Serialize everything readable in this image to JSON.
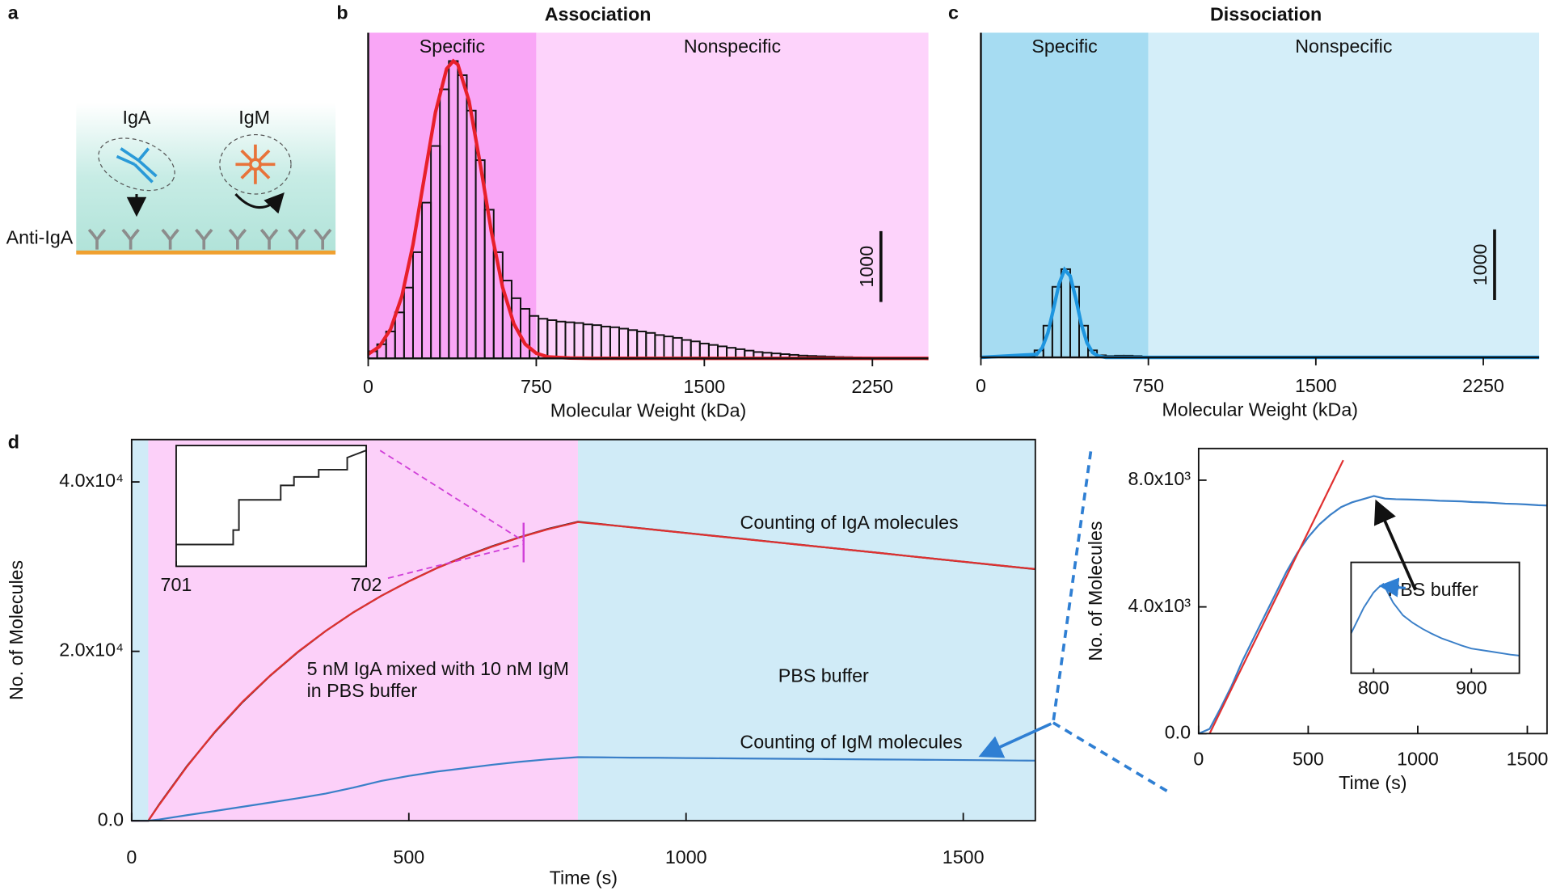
{
  "panel_labels": [
    "a",
    "b",
    "c",
    "d"
  ],
  "diagram": {
    "labels": [
      "IgA",
      "IgM",
      "Anti-IgA"
    ]
  },
  "chart_data": [
    {
      "type": "histogram",
      "title": "Association",
      "xlabel": "Molecular Weight (kDa)",
      "xlim": [
        0,
        2500
      ],
      "ylim": [
        0,
        4600
      ],
      "xticks": [
        0,
        750,
        1500,
        2250
      ],
      "scalebar": 1000,
      "color": "#111111",
      "regions": [
        {
          "label": "Specific",
          "range": [
            0,
            750
          ],
          "color": "#f9a6f6"
        },
        {
          "label": "Nonspecific",
          "range": [
            750,
            2500
          ],
          "color": "#fdd3fb"
        }
      ],
      "bins": [
        0,
        40,
        80,
        120,
        160,
        200,
        240,
        280,
        320,
        360,
        400,
        440,
        480,
        520,
        560,
        600,
        640,
        680,
        720,
        760,
        800,
        840,
        880,
        920,
        960,
        1000,
        1040,
        1080,
        1120,
        1160,
        1200,
        1240,
        1280,
        1320,
        1360,
        1400,
        1440,
        1480,
        1520,
        1560,
        1600,
        1640,
        1680,
        1720,
        1760,
        1800,
        1840,
        1880,
        1920,
        1960,
        2000,
        2040,
        2080,
        2120,
        2160,
        2200,
        2240,
        2280,
        2320,
        2360,
        2400,
        2440,
        2480
      ],
      "values": [
        100,
        200,
        380,
        650,
        1000,
        1500,
        2200,
        3000,
        3800,
        4200,
        4000,
        3500,
        2800,
        2100,
        1500,
        1100,
        850,
        700,
        600,
        560,
        540,
        520,
        510,
        500,
        480,
        470,
        450,
        440,
        420,
        400,
        380,
        360,
        330,
        310,
        290,
        260,
        240,
        210,
        190,
        170,
        150,
        130,
        110,
        90,
        80,
        70,
        60,
        50,
        40,
        35,
        30,
        25,
        20,
        18,
        15,
        12,
        10,
        10,
        8,
        8,
        6,
        5
      ],
      "fit": {
        "color": "#e8202a",
        "x": [
          0,
          50,
          100,
          150,
          200,
          250,
          300,
          350,
          380,
          400,
          450,
          500,
          550,
          600,
          650,
          700,
          750,
          800,
          900,
          1000,
          2500
        ],
        "values": [
          59,
          168,
          413,
          878,
          1610,
          2547,
          3475,
          4090,
          4200,
          4150,
          3633,
          2743,
          1786,
          1003,
          486,
          203,
          73,
          23,
          5,
          1,
          0
        ]
      }
    },
    {
      "type": "histogram",
      "title": "Dissociation",
      "xlabel": "Molecular Weight (kDa)",
      "xlim": [
        0,
        2500
      ],
      "ylim": [
        0,
        4600
      ],
      "xticks": [
        0,
        750,
        1500,
        2250
      ],
      "scalebar": 1000,
      "color": "#111111",
      "regions": [
        {
          "label": "Specific",
          "range": [
            0,
            750
          ],
          "color": "#a6dcf2"
        },
        {
          "label": "Nonspecific",
          "range": [
            750,
            2500
          ],
          "color": "#d4eef9"
        }
      ],
      "bins": [
        0,
        40,
        80,
        120,
        160,
        200,
        240,
        280,
        320,
        360,
        400,
        440,
        480,
        520,
        560,
        600,
        640,
        680,
        720,
        760,
        800,
        840,
        880,
        920,
        960,
        1000,
        1040,
        1080,
        1120,
        1160,
        1200,
        1240,
        1280,
        1320,
        1360,
        1400,
        1440,
        1480,
        1520,
        1560,
        1600,
        1640,
        1680,
        1720,
        1760,
        1800,
        1840,
        1880,
        1920,
        1960,
        2000,
        2040,
        2080,
        2120,
        2160,
        2200,
        2240,
        2280,
        2320,
        2360,
        2400,
        2440,
        2480
      ],
      "values": [
        0,
        0,
        0,
        0,
        0,
        20,
        100,
        450,
        1000,
        1250,
        1000,
        450,
        100,
        30,
        20,
        25,
        25,
        20,
        10,
        5,
        5,
        5,
        4,
        4,
        4,
        3,
        3,
        3,
        3,
        2,
        2,
        2,
        2,
        2,
        2,
        2,
        2,
        2,
        2,
        2,
        2,
        2,
        2,
        2,
        2,
        2,
        2,
        2,
        2,
        2,
        2,
        2,
        2,
        2,
        2,
        2,
        2,
        2,
        2,
        2,
        2,
        2
      ],
      "fit": {
        "color": "#1e96e0",
        "x": [
          0,
          250,
          275,
          300,
          325,
          350,
          375,
          400,
          425,
          450,
          475,
          500,
          525,
          560,
          2500
        ],
        "values": [
          0,
          43,
          138,
          348,
          683,
          1044,
          1244,
          1154,
          834,
          469,
          206,
          70,
          19,
          0,
          0
        ]
      }
    },
    {
      "type": "line",
      "xlabel": "Time (s)",
      "ylabel": "No. of Molecules",
      "xlim": [
        0,
        1630
      ],
      "ylim": [
        0,
        45000
      ],
      "xticks": [
        0,
        500,
        1000,
        1500
      ],
      "yticks": [
        {
          "value": 0,
          "label": "0.0"
        },
        {
          "value": 20000,
          "label": "2.0x10⁴"
        },
        {
          "value": 40000,
          "label": "4.0x10⁴"
        }
      ],
      "regions": [
        {
          "range": [
            0,
            30
          ],
          "color": "#d0ebf7"
        },
        {
          "range": [
            30,
            805
          ],
          "color": "#fcd0f9"
        },
        {
          "range": [
            805,
            1630
          ],
          "color": "#d0ebf7"
        }
      ],
      "annotations": [
        "5 nM IgA mixed with 10 nM IgM",
        "in PBS buffer",
        "PBS buffer",
        "Counting of IgA molecules",
        "Counting of IgM molecules"
      ],
      "x": [
        0,
        30,
        50,
        100,
        150,
        200,
        250,
        300,
        350,
        400,
        450,
        500,
        550,
        600,
        650,
        700,
        750,
        805,
        850,
        900,
        950,
        1000,
        1050,
        1100,
        1150,
        1200,
        1250,
        1300,
        1350,
        1400,
        1450,
        1500,
        1550,
        1600,
        1630
      ],
      "series": [
        {
          "color": "#222222",
          "values": [
            0,
            0,
            1950,
            6460,
            10440,
            13990,
            17120,
            19920,
            22390,
            24600,
            26550,
            28270,
            29820,
            31190,
            32400,
            33480,
            34440,
            35300,
            35000,
            34650,
            34320,
            33980,
            33640,
            33300,
            32960,
            32620,
            32280,
            31940,
            31600,
            31260,
            30920,
            30580,
            30240,
            29900,
            29700
          ]
        },
        {
          "color": "#e03030",
          "values": [
            0,
            0,
            1900,
            6400,
            10500,
            14050,
            17150,
            19950,
            22400,
            24600,
            26550,
            28250,
            29800,
            31150,
            32350,
            33450,
            34400,
            35250,
            34980,
            34640,
            34300,
            33970,
            33630,
            33290,
            32950,
            32610,
            32280,
            31940,
            31600,
            31260,
            30920,
            30590,
            30250,
            29910,
            29720
          ]
        },
        {
          "color": "#3a7fc8",
          "values": [
            0,
            0,
            150,
            650,
            1150,
            1650,
            2150,
            2650,
            3200,
            3900,
            4700,
            5300,
            5800,
            6200,
            6600,
            6950,
            7250,
            7500,
            7480,
            7450,
            7430,
            7400,
            7380,
            7350,
            7330,
            7300,
            7280,
            7260,
            7230,
            7210,
            7190,
            7160,
            7140,
            7110,
            7100
          ]
        }
      ]
    },
    {
      "type": "line",
      "xlim": [
        701,
        702
      ],
      "ylim": [
        32800,
        32900
      ],
      "xticks": [
        701,
        702
      ],
      "x": [
        701,
        701.3,
        701.3,
        701.33,
        701.33,
        701.55,
        701.55,
        701.62,
        701.62,
        701.75,
        701.75,
        701.9,
        701.9,
        702
      ],
      "series": [
        {
          "color": "#222222",
          "values": [
            32818,
            32818,
            32830,
            32830,
            32855,
            32855,
            32867,
            32867,
            32874,
            32874,
            32880,
            32880,
            32890,
            32896
          ]
        }
      ]
    },
    {
      "type": "line",
      "xlabel": "Time (s)",
      "ylabel": "No. of Molecules",
      "xlim": [
        0,
        1590
      ],
      "ylim": [
        0,
        9000
      ],
      "xticks": [
        0,
        500,
        1000,
        1500
      ],
      "yticks": [
        {
          "value": 0,
          "label": "0.0"
        },
        {
          "value": 4000,
          "label": "4.0x10³"
        },
        {
          "value": 8000,
          "label": "8.0x10³"
        }
      ],
      "series": [
        {
          "color": "#3a7fc8",
          "x": [
            0,
            50,
            100,
            150,
            200,
            250,
            300,
            350,
            400,
            450,
            500,
            550,
            600,
            650,
            700,
            750,
            800,
            850,
            900,
            950,
            1000,
            1050,
            1100,
            1150,
            1200,
            1250,
            1300,
            1350,
            1400,
            1450,
            1500,
            1550,
            1590
          ],
          "values": [
            0,
            150,
            800,
            1500,
            2300,
            3000,
            3700,
            4400,
            5100,
            5700,
            6200,
            6600,
            6900,
            7150,
            7300,
            7400,
            7500,
            7420,
            7400,
            7390,
            7380,
            7370,
            7350,
            7340,
            7330,
            7310,
            7300,
            7280,
            7260,
            7250,
            7230,
            7210,
            7200
          ]
        },
        {
          "color": "#e03030",
          "x": [
            50,
            660
          ],
          "values": [
            0,
            8630
          ]
        }
      ]
    },
    {
      "type": "line",
      "xlim": [
        777,
        949
      ],
      "ylim": [
        7300,
        7520
      ],
      "xticks": [
        800,
        900
      ],
      "annotations": [
        "PBS buffer"
      ],
      "series": [
        {
          "color": "#3a7fc8",
          "x": [
            777,
            790,
            800,
            805,
            810,
            820,
            830,
            840,
            850,
            860,
            870,
            880,
            890,
            900,
            920,
            940,
            949
          ],
          "values": [
            7379,
            7430,
            7460,
            7470,
            7477,
            7440,
            7415,
            7400,
            7388,
            7378,
            7369,
            7362,
            7355,
            7349,
            7343,
            7337,
            7335
          ]
        }
      ]
    }
  ]
}
